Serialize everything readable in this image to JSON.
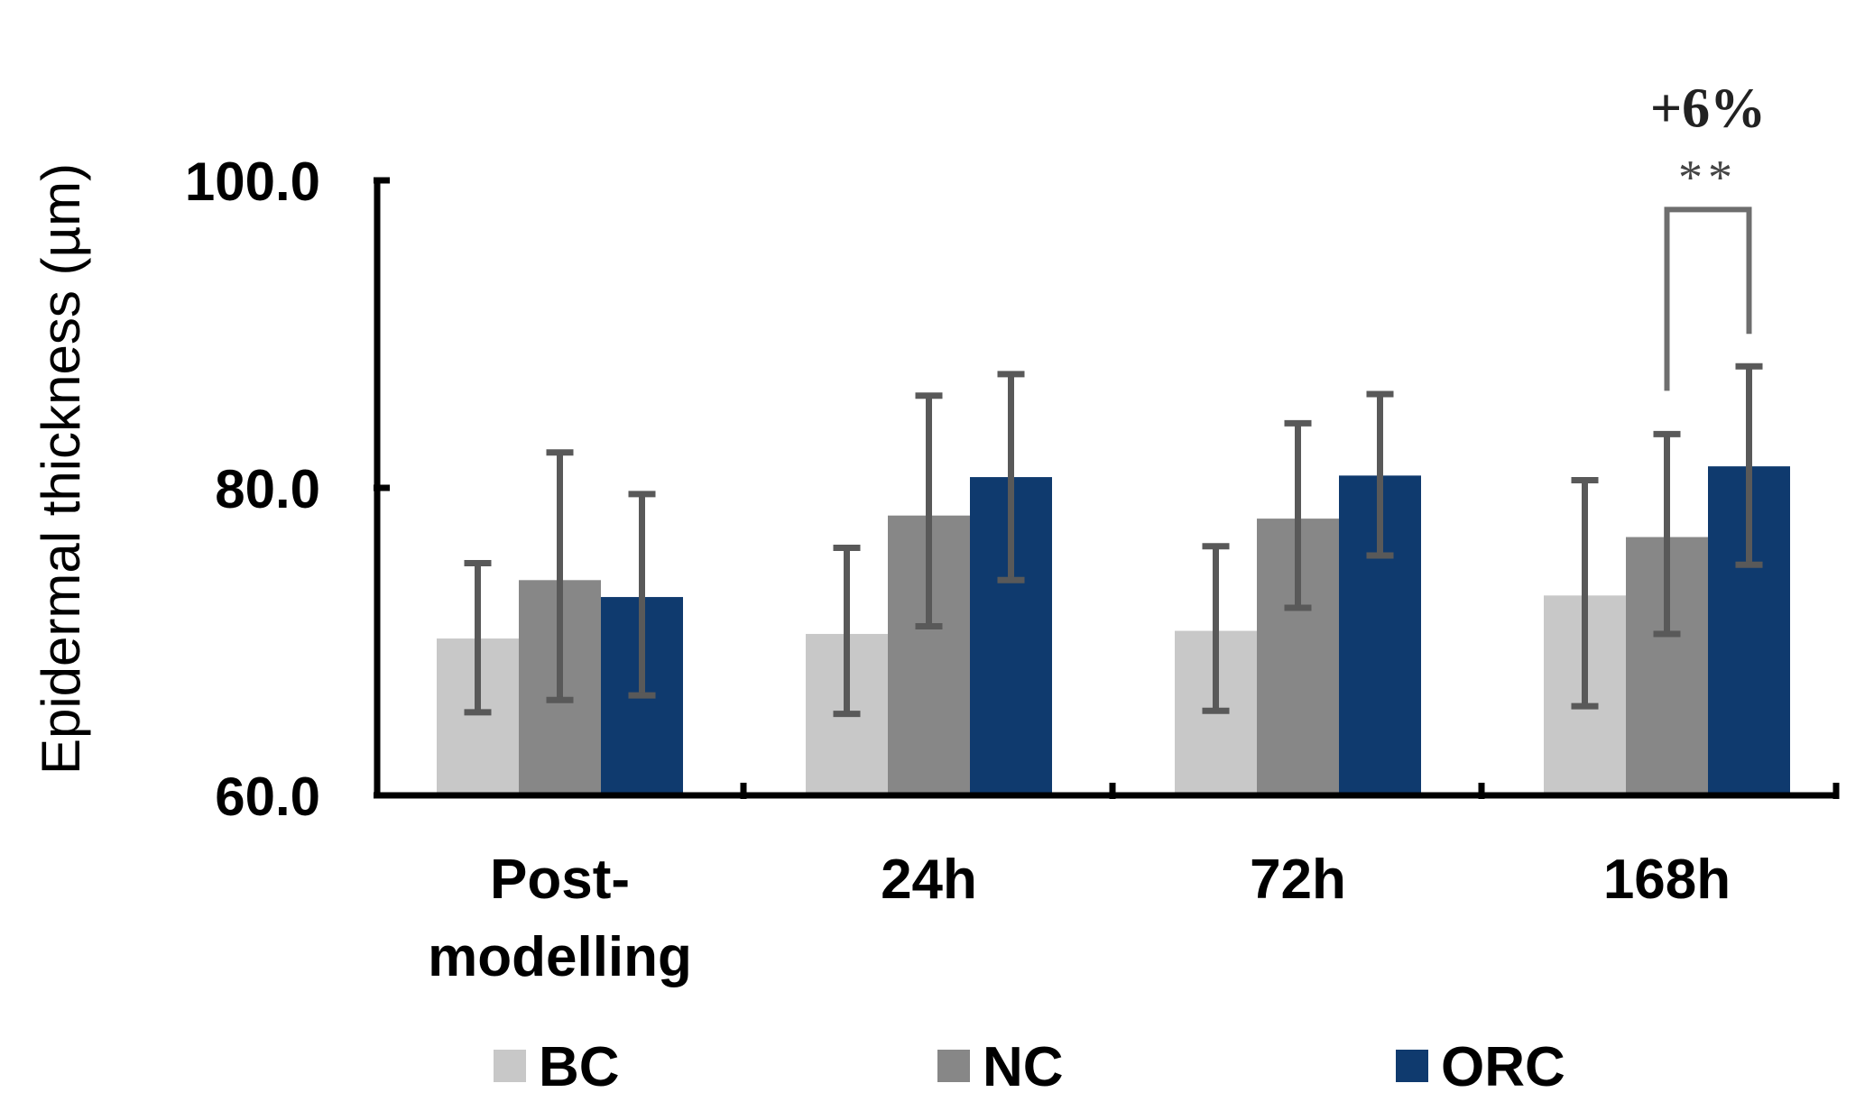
{
  "chart_data": {
    "type": "bar",
    "title": "",
    "xlabel": "",
    "ylabel": "Epidermal thickness (µm)",
    "ylim": [
      60,
      100
    ],
    "yticks": [
      "60.0",
      "80.0",
      "100.0"
    ],
    "ytick_values": [
      60,
      80,
      100
    ],
    "categories": [
      [
        "Post-",
        "modelling"
      ],
      [
        "24h"
      ],
      [
        "72h"
      ],
      [
        "168h"
      ]
    ],
    "series": [
      {
        "name": "BC",
        "color": "#c8c8c8",
        "values": [
          70.2,
          70.5,
          70.7,
          73.0
        ],
        "err_low": [
          65.4,
          65.3,
          65.5,
          65.8
        ],
        "err_high": [
          75.1,
          76.1,
          76.2,
          80.5
        ]
      },
      {
        "name": "NC",
        "color": "#878787",
        "values": [
          74.0,
          78.2,
          78.0,
          76.8
        ],
        "err_low": [
          66.2,
          71.0,
          72.2,
          70.5
        ],
        "err_high": [
          82.3,
          86.0,
          84.2,
          83.5
        ]
      },
      {
        "name": "ORC",
        "color": "#0f3a6e",
        "values": [
          72.9,
          80.7,
          80.8,
          81.4
        ],
        "err_low": [
          66.5,
          74.0,
          75.6,
          75.0
        ],
        "err_high": [
          79.6,
          87.4,
          86.1,
          87.9
        ]
      }
    ],
    "annotation": {
      "text": "+6%",
      "significance": "**",
      "category_index": 3,
      "series_from": "NC",
      "series_to": "ORC",
      "bracket_top": 98.1
    }
  }
}
